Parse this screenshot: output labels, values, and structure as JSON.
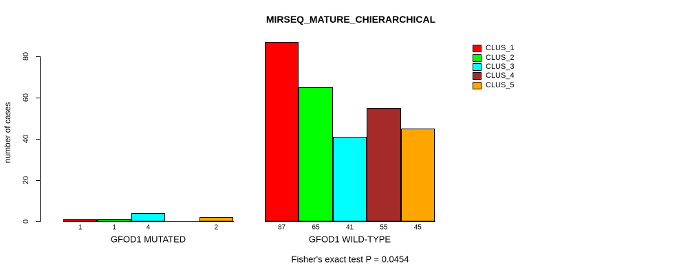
{
  "chart_data": {
    "type": "bar",
    "title": "MIRSEQ_MATURE_CHIERARCHICAL",
    "ylabel": "number of cases",
    "xlabel": "",
    "categories": [
      "GFOD1 MUTATED",
      "GFOD1 WILD-TYPE"
    ],
    "series": [
      {
        "name": "CLUS_1",
        "color": "#FF0000",
        "values": [
          1,
          87
        ]
      },
      {
        "name": "CLUS_2",
        "color": "#00FF00",
        "values": [
          1,
          65
        ]
      },
      {
        "name": "CLUS_3",
        "color": "#00FFFF",
        "values": [
          4,
          41
        ]
      },
      {
        "name": "CLUS_4",
        "color": "#A52A2A",
        "values": [
          0,
          55
        ]
      },
      {
        "name": "CLUS_5",
        "color": "#FFA500",
        "values": [
          2,
          45
        ]
      }
    ],
    "yticks": [
      0,
      20,
      40,
      60,
      80
    ],
    "ylim": [
      0,
      87
    ],
    "grid": false,
    "legend_position": "top-right",
    "bar_value_labels": [
      [
        "1",
        "1",
        "4",
        "",
        "2"
      ],
      [
        "87",
        "65",
        "41",
        "55",
        "45"
      ]
    ],
    "annotation": "Fisher's exact test P = 0.0454"
  }
}
